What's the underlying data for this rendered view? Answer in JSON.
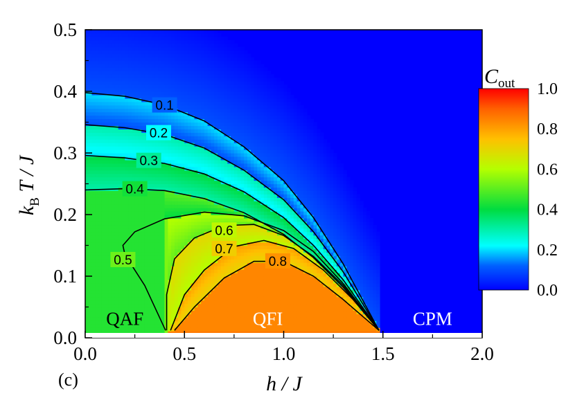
{
  "chart_data": {
    "type": "heatmap",
    "title": "",
    "panel_label": "(c)",
    "xlabel": "h / J",
    "ylabel_parts": {
      "k": "k",
      "sub": "B",
      "rest": " T / J"
    },
    "xlim": [
      0.0,
      2.0
    ],
    "ylim": [
      0.0,
      0.5
    ],
    "x_ticks": [
      "0.0",
      "0.5",
      "1.0",
      "1.5",
      "2.0"
    ],
    "y_ticks": [
      "0.0",
      "0.1",
      "0.2",
      "0.3",
      "0.4",
      "0.5"
    ],
    "colorbar": {
      "title_main": "C",
      "title_sub": "out",
      "range": [
        0.0,
        1.0
      ],
      "ticks": [
        "0.0",
        "0.2",
        "0.4",
        "0.6",
        "0.8",
        "1.0"
      ]
    },
    "regions": [
      {
        "label": "QAF",
        "h": 0.2,
        "T": 0.03,
        "color": "#000000"
      },
      {
        "label": "QFI",
        "h": 0.92,
        "T": 0.03,
        "color": "#ffffff"
      },
      {
        "label": "CPM",
        "h": 1.75,
        "T": 0.03,
        "color": "#ffffff"
      }
    ],
    "contours": [
      {
        "level": "0.1",
        "label_at": [
          0.4,
          0.378
        ],
        "points": [
          [
            0,
            0.398
          ],
          [
            0.2,
            0.392
          ],
          [
            0.4,
            0.378
          ],
          [
            0.6,
            0.352
          ],
          [
            0.8,
            0.31
          ],
          [
            1.0,
            0.255
          ],
          [
            1.15,
            0.195
          ],
          [
            1.3,
            0.12
          ],
          [
            1.48,
            0.012
          ]
        ]
      },
      {
        "level": "0.2",
        "label_at": [
          0.37,
          0.333
        ],
        "points": [
          [
            0,
            0.346
          ],
          [
            0.2,
            0.341
          ],
          [
            0.4,
            0.33
          ],
          [
            0.6,
            0.308
          ],
          [
            0.8,
            0.272
          ],
          [
            1.0,
            0.224
          ],
          [
            1.15,
            0.172
          ],
          [
            1.3,
            0.107
          ],
          [
            1.48,
            0.012
          ]
        ]
      },
      {
        "level": "0.3",
        "label_at": [
          0.32,
          0.288
        ],
        "points": [
          [
            0,
            0.296
          ],
          [
            0.2,
            0.292
          ],
          [
            0.4,
            0.283
          ],
          [
            0.6,
            0.266
          ],
          [
            0.8,
            0.237
          ],
          [
            1.0,
            0.195
          ],
          [
            1.15,
            0.15
          ],
          [
            1.3,
            0.094
          ],
          [
            1.48,
            0.012
          ]
        ]
      },
      {
        "level": "0.4",
        "label_at": [
          0.25,
          0.242
        ],
        "points": [
          [
            0,
            0.24
          ],
          [
            0.2,
            0.242
          ],
          [
            0.4,
            0.239
          ],
          [
            0.6,
            0.226
          ],
          [
            0.8,
            0.203
          ],
          [
            1.0,
            0.168
          ],
          [
            1.15,
            0.13
          ],
          [
            1.3,
            0.082
          ],
          [
            1.48,
            0.012
          ]
        ]
      },
      {
        "level": "0.5",
        "label_at": [
          0.19,
          0.127
        ],
        "points": [
          [
            0.405,
            0.012
          ],
          [
            0.3,
            0.085
          ],
          [
            0.2,
            0.135
          ],
          [
            0.19,
            0.15
          ],
          [
            0.25,
            0.172
          ],
          [
            0.4,
            0.193
          ],
          [
            0.6,
            0.204
          ],
          [
            0.8,
            0.198
          ],
          [
            1.0,
            0.174
          ],
          [
            1.15,
            0.14
          ],
          [
            1.3,
            0.088
          ],
          [
            1.48,
            0.012
          ]
        ]
      },
      {
        "level": "0.6",
        "label_at": [
          0.7,
          0.175
        ],
        "points": [
          [
            0.41,
            0.012
          ],
          [
            0.41,
            0.07
          ],
          [
            0.45,
            0.128
          ],
          [
            0.55,
            0.162
          ],
          [
            0.7,
            0.182
          ],
          [
            0.85,
            0.184
          ],
          [
            1.0,
            0.166
          ],
          [
            1.15,
            0.132
          ],
          [
            1.3,
            0.085
          ],
          [
            1.48,
            0.012
          ]
        ]
      },
      {
        "level": "0.7",
        "label_at": [
          0.7,
          0.145
        ],
        "points": [
          [
            0.43,
            0.012
          ],
          [
            0.5,
            0.07
          ],
          [
            0.6,
            0.11
          ],
          [
            0.75,
            0.148
          ],
          [
            0.9,
            0.158
          ],
          [
            1.05,
            0.145
          ],
          [
            1.2,
            0.11
          ],
          [
            1.35,
            0.062
          ],
          [
            1.48,
            0.012
          ]
        ]
      },
      {
        "level": "0.8",
        "label_at": [
          0.97,
          0.125
        ],
        "points": [
          [
            0.45,
            0.012
          ],
          [
            0.55,
            0.05
          ],
          [
            0.7,
            0.097
          ],
          [
            0.85,
            0.124
          ],
          [
            1.0,
            0.124
          ],
          [
            1.15,
            0.1
          ],
          [
            1.3,
            0.062
          ],
          [
            1.48,
            0.012
          ]
        ]
      }
    ]
  }
}
